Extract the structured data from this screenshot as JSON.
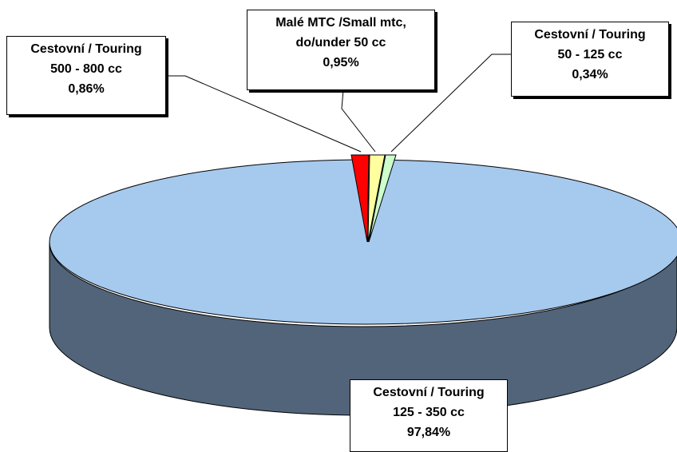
{
  "chart_data": {
    "type": "pie",
    "style": "3d",
    "slices": [
      {
        "label": "Cestovní / Touring 125 - 350 cc",
        "value": 97.84,
        "value_text": "97,84%",
        "color": "#a6c9ee",
        "side_color": "#52647a"
      },
      {
        "label": "Cestovní / Touring 500 - 800 cc",
        "value": 0.86,
        "value_text": "0,86%",
        "color": "#ff0000",
        "side_color": "#8a0000"
      },
      {
        "label": "Malé MTC /Small mtc, do/under 50 cc",
        "value": 0.95,
        "value_text": "0,95%",
        "color": "#ffffa0",
        "side_color": "#8a8a50"
      },
      {
        "label": "Cestovní / Touring 50 - 125 cc",
        "value": 0.34,
        "value_text": "0,34%",
        "color": "#ccffcc",
        "side_color": "#6a8a6a"
      }
    ],
    "labels": [
      {
        "lines": [
          "Cestovní / Touring",
          "500 - 800 cc",
          "0,86%"
        ]
      },
      {
        "lines": [
          "Malé MTC /Small mtc,",
          "do/under 50 cc",
          "0,95%"
        ]
      },
      {
        "lines": [
          "Cestovní / Touring",
          "50 - 125 cc",
          "0,34%"
        ]
      },
      {
        "lines": [
          "Cestovní / Touring",
          "125 - 350 cc",
          "97,84%"
        ]
      }
    ]
  }
}
